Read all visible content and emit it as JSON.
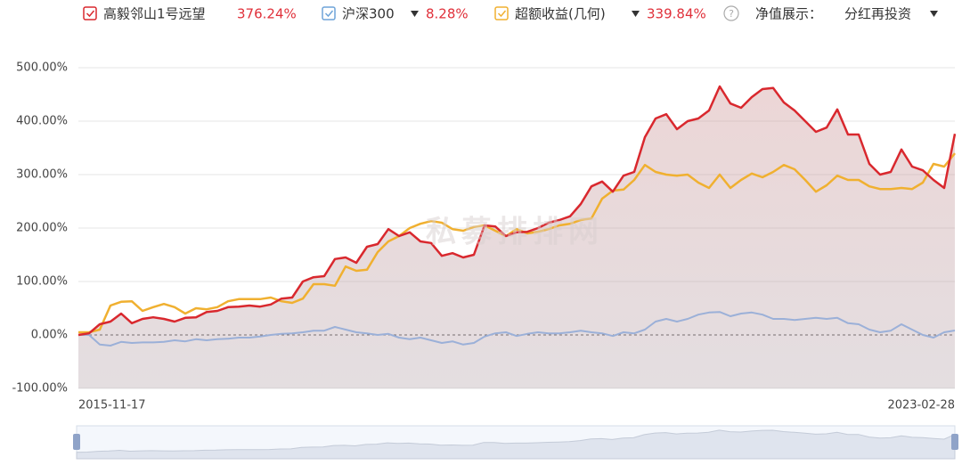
{
  "chart_data": {
    "type": "line",
    "watermark": "私募排排网",
    "display_mode": {
      "label": "净值展示：",
      "value": "分红再投资"
    },
    "categories": [
      "2015-11-17",
      null,
      null,
      null,
      null,
      null,
      null,
      null,
      null,
      null,
      null,
      null,
      null,
      null,
      null,
      null,
      null,
      null,
      null,
      null,
      null,
      null,
      null,
      null,
      null,
      null,
      null,
      null,
      null,
      null,
      null,
      null,
      null,
      null,
      null,
      null,
      null,
      null,
      null,
      null,
      null,
      null,
      null,
      null,
      null,
      null,
      null,
      null,
      null,
      null,
      null,
      null,
      null,
      null,
      null,
      null,
      null,
      null,
      null,
      null,
      null,
      null,
      null,
      null,
      null,
      null,
      null,
      null,
      null,
      null,
      null,
      null,
      null,
      null,
      null,
      null,
      null,
      null,
      null,
      null,
      null,
      null,
      "2023-02-28"
    ],
    "ylim": [
      -100,
      500
    ],
    "yticks": [
      {
        "value": -100,
        "label": "-100.00%"
      },
      {
        "value": 0,
        "label": "0.00%"
      },
      {
        "value": 100,
        "label": "100.00%"
      },
      {
        "value": 200,
        "label": "200.00%"
      },
      {
        "value": 300,
        "label": "300.00%"
      },
      {
        "value": 400,
        "label": "400.00%"
      },
      {
        "value": 500,
        "label": "500.00%"
      }
    ],
    "grid": true,
    "series": [
      {
        "name": "高毅邻山1号远望",
        "color": "#d9282e",
        "area": true,
        "legend_value": {
          "value": 376.24,
          "label": "376.24%"
        },
        "values": [
          0,
          3,
          20,
          25,
          40,
          22,
          30,
          33,
          30,
          25,
          32,
          33,
          43,
          45,
          52,
          53,
          55,
          53,
          57,
          68,
          70,
          100,
          108,
          110,
          142,
          145,
          135,
          165,
          170,
          198,
          185,
          192,
          175,
          172,
          148,
          153,
          145,
          150,
          205,
          203,
          185,
          192,
          193,
          200,
          210,
          215,
          222,
          245,
          278,
          287,
          268,
          298,
          305,
          370,
          405,
          413,
          385,
          400,
          405,
          420,
          465,
          433,
          425,
          445,
          460,
          462,
          435,
          420,
          400,
          380,
          388,
          422,
          375,
          375,
          320,
          300,
          305,
          347,
          315,
          308,
          290,
          275,
          376.24
        ]
      },
      {
        "name": "沪深300",
        "color": "#9bb0d8",
        "area": false,
        "legend_value": {
          "value": 8.28,
          "label": "8.28%"
        },
        "values": [
          0,
          0,
          -18,
          -20,
          -13,
          -15,
          -14,
          -14,
          -13,
          -10,
          -12,
          -8,
          -10,
          -8,
          -7,
          -5,
          -5,
          -3,
          0,
          2,
          3,
          5,
          8,
          8,
          15,
          10,
          5,
          3,
          0,
          2,
          -5,
          -8,
          -5,
          -10,
          -15,
          -12,
          -18,
          -15,
          -3,
          3,
          5,
          -2,
          2,
          5,
          3,
          3,
          5,
          8,
          5,
          3,
          -2,
          5,
          3,
          10,
          25,
          30,
          25,
          30,
          38,
          42,
          43,
          35,
          40,
          42,
          38,
          30,
          30,
          28,
          30,
          32,
          30,
          32,
          22,
          20,
          10,
          5,
          8,
          20,
          10,
          0,
          -5,
          5,
          8.28
        ]
      },
      {
        "name": "超额收益(几何)",
        "color": "#f0b030",
        "area": false,
        "legend_value": {
          "value": 339.84,
          "label": "339.84%"
        },
        "values": [
          5,
          5,
          10,
          55,
          62,
          63,
          45,
          52,
          58,
          52,
          40,
          50,
          48,
          52,
          63,
          67,
          67,
          67,
          70,
          63,
          60,
          68,
          95,
          95,
          92,
          128,
          120,
          122,
          155,
          175,
          185,
          200,
          208,
          213,
          210,
          198,
          195,
          202,
          205,
          195,
          185,
          198,
          190,
          193,
          198,
          205,
          208,
          215,
          218,
          255,
          270,
          272,
          290,
          318,
          305,
          300,
          298,
          300,
          285,
          275,
          300,
          275,
          290,
          302,
          295,
          305,
          318,
          310,
          290,
          268,
          280,
          298,
          290,
          290,
          278,
          273,
          273,
          275,
          273,
          285,
          320,
          315,
          339.84
        ]
      }
    ]
  }
}
